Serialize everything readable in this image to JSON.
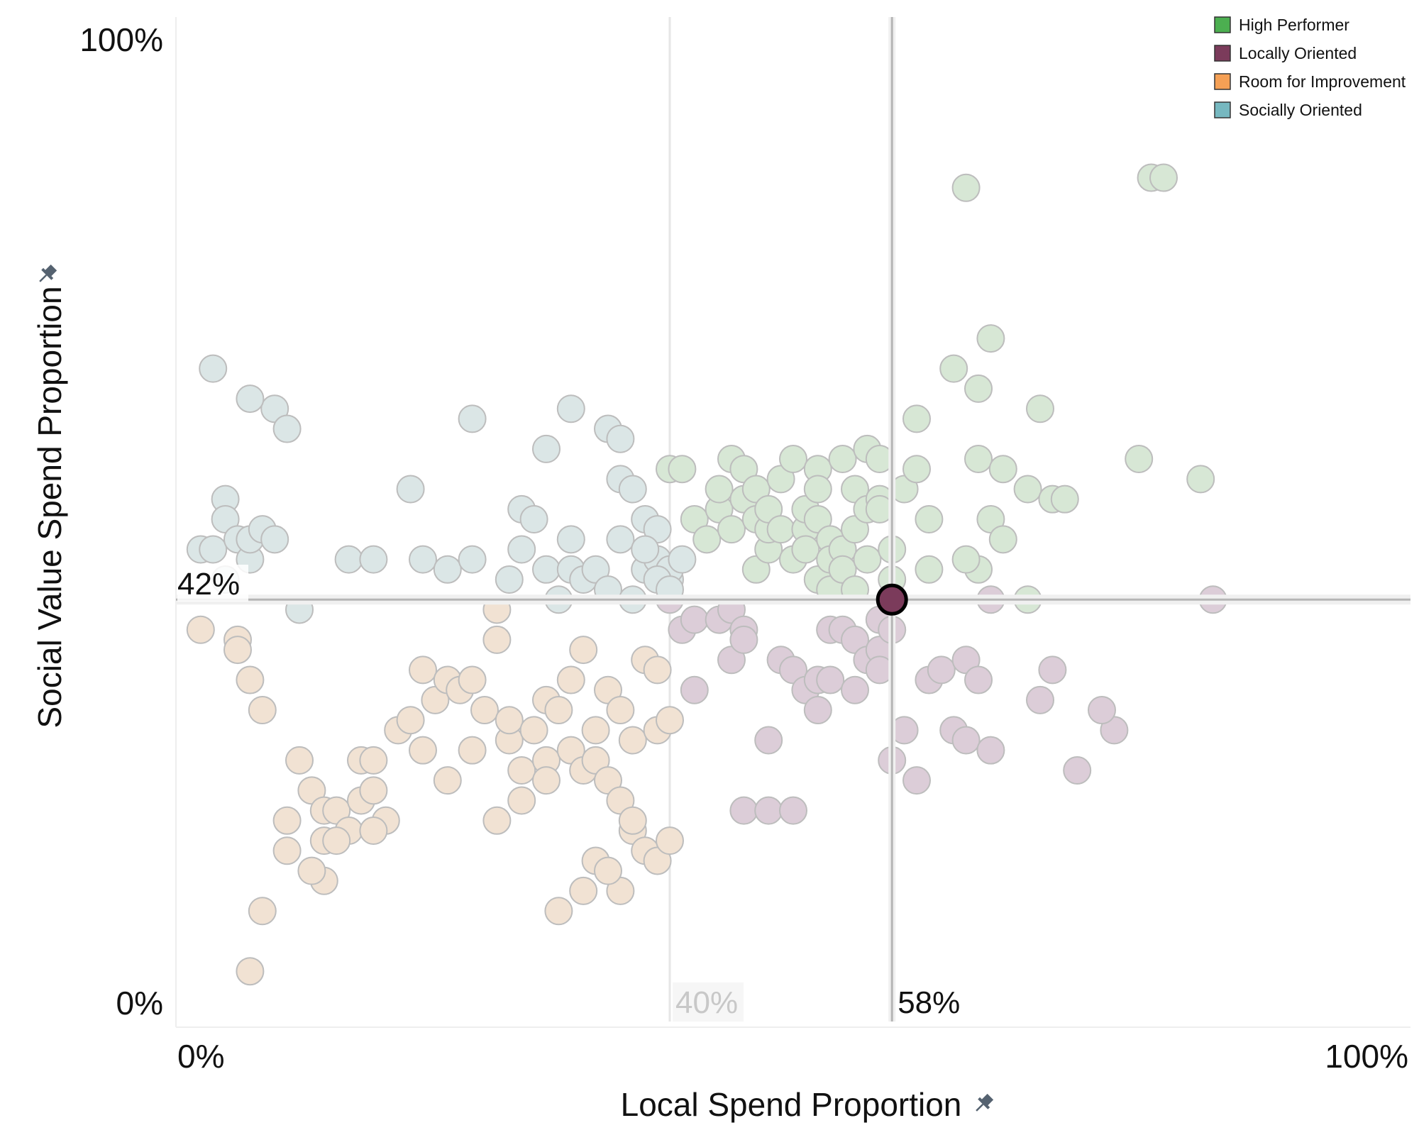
{
  "chart_data": {
    "type": "scatter",
    "xlabel": "Local Spend Proportion",
    "ylabel": "Social Value Spend Proportion",
    "xlim": [
      0,
      100
    ],
    "ylim": [
      0,
      100
    ],
    "x_ticks": [
      "0%",
      "100%"
    ],
    "y_ticks": [
      "0%",
      "100%"
    ],
    "axis_icon": "pin-icon",
    "legend_position": "top-right",
    "grid": false,
    "reference_lines": {
      "x_selected": {
        "value": 58,
        "label": "58%"
      },
      "y_selected": {
        "value": 42,
        "label": "42%"
      },
      "x_benchmark": {
        "value": 40,
        "label": "40%"
      }
    },
    "highlight_point": {
      "x": 58,
      "y": 42,
      "color": "#7b3b5b"
    },
    "series": [
      {
        "name": "High Performer",
        "color": "#4caf50",
        "fill": "#d7e7d5",
        "points": [
          [
            40,
            55
          ],
          [
            41,
            55
          ],
          [
            42,
            50
          ],
          [
            43,
            48
          ],
          [
            44,
            51
          ],
          [
            44,
            53
          ],
          [
            45,
            49
          ],
          [
            45,
            56
          ],
          [
            46,
            52
          ],
          [
            46,
            55
          ],
          [
            47,
            50
          ],
          [
            47,
            53
          ],
          [
            47,
            45
          ],
          [
            48,
            47
          ],
          [
            48,
            49
          ],
          [
            48,
            51
          ],
          [
            49,
            54
          ],
          [
            49,
            49
          ],
          [
            50,
            46
          ],
          [
            50,
            56
          ],
          [
            51,
            49
          ],
          [
            51,
            51
          ],
          [
            51,
            47
          ],
          [
            52,
            44
          ],
          [
            52,
            55
          ],
          [
            52,
            53
          ],
          [
            52,
            50
          ],
          [
            53,
            48
          ],
          [
            53,
            46
          ],
          [
            53,
            43
          ],
          [
            54,
            47
          ],
          [
            54,
            45
          ],
          [
            54,
            56
          ],
          [
            55,
            49
          ],
          [
            55,
            43
          ],
          [
            55,
            53
          ],
          [
            56,
            46
          ],
          [
            56,
            51
          ],
          [
            56,
            57
          ],
          [
            57,
            52
          ],
          [
            57,
            56
          ],
          [
            57,
            51
          ],
          [
            58,
            47
          ],
          [
            58,
            44
          ],
          [
            59,
            53
          ],
          [
            60,
            60
          ],
          [
            60,
            55
          ],
          [
            61,
            50
          ],
          [
            61,
            45
          ],
          [
            63,
            65
          ],
          [
            64,
            83
          ],
          [
            65,
            63
          ],
          [
            65,
            56
          ],
          [
            65,
            45
          ],
          [
            64,
            46
          ],
          [
            66,
            68
          ],
          [
            66,
            50
          ],
          [
            67,
            55
          ],
          [
            67,
            48
          ],
          [
            69,
            53
          ],
          [
            69,
            42
          ],
          [
            70,
            61
          ],
          [
            71,
            52
          ],
          [
            72,
            52
          ],
          [
            78,
            56
          ],
          [
            79,
            84
          ],
          [
            80,
            84
          ],
          [
            83,
            54
          ]
        ]
      },
      {
        "name": "Locally Oriented",
        "color": "#7b3b5b",
        "fill": "#dccdd8",
        "points": [
          [
            40,
            42
          ],
          [
            41,
            39
          ],
          [
            42,
            40
          ],
          [
            42,
            33
          ],
          [
            44,
            40
          ],
          [
            45,
            41
          ],
          [
            45,
            36
          ],
          [
            46,
            39
          ],
          [
            46,
            38
          ],
          [
            48,
            28
          ],
          [
            49,
            36
          ],
          [
            50,
            35
          ],
          [
            51,
            33
          ],
          [
            52,
            31
          ],
          [
            52,
            34
          ],
          [
            53,
            34
          ],
          [
            53,
            39
          ],
          [
            54,
            39
          ],
          [
            55,
            38
          ],
          [
            55,
            33
          ],
          [
            56,
            36
          ],
          [
            57,
            37
          ],
          [
            57,
            35
          ],
          [
            57,
            40
          ],
          [
            58,
            39
          ],
          [
            59,
            29
          ],
          [
            60,
            24
          ],
          [
            61,
            34
          ],
          [
            62,
            35
          ],
          [
            63,
            29
          ],
          [
            64,
            36
          ],
          [
            64,
            28
          ],
          [
            65,
            34
          ],
          [
            66,
            27
          ],
          [
            66,
            42
          ],
          [
            70,
            32
          ],
          [
            71,
            35
          ],
          [
            76,
            29
          ],
          [
            75,
            31
          ],
          [
            73,
            25
          ],
          [
            84,
            42
          ],
          [
            46,
            21
          ],
          [
            48,
            21
          ],
          [
            50,
            21
          ],
          [
            58,
            26
          ]
        ]
      },
      {
        "name": "Room for Improvement",
        "color": "#f5a055",
        "fill": "#f1e2d3",
        "points": [
          [
            2,
            39
          ],
          [
            5,
            38
          ],
          [
            5,
            37
          ],
          [
            6,
            34
          ],
          [
            7,
            31
          ],
          [
            10,
            26
          ],
          [
            11,
            23
          ],
          [
            12,
            21
          ],
          [
            12,
            18
          ],
          [
            13,
            21
          ],
          [
            14,
            19
          ],
          [
            15,
            22
          ],
          [
            15,
            26
          ],
          [
            16,
            26
          ],
          [
            17,
            20
          ],
          [
            18,
            29
          ],
          [
            19,
            30
          ],
          [
            20,
            35
          ],
          [
            21,
            32
          ],
          [
            22,
            34
          ],
          [
            23,
            33
          ],
          [
            24,
            34
          ],
          [
            25,
            31
          ],
          [
            26,
            41
          ],
          [
            26,
            38
          ],
          [
            27,
            28
          ],
          [
            27,
            30
          ],
          [
            28,
            25
          ],
          [
            29,
            29
          ],
          [
            30,
            32
          ],
          [
            31,
            31
          ],
          [
            32,
            34
          ],
          [
            33,
            37
          ],
          [
            34,
            29
          ],
          [
            35,
            33
          ],
          [
            36,
            31
          ],
          [
            37,
            28
          ],
          [
            38,
            36
          ],
          [
            39,
            35
          ],
          [
            39,
            29
          ],
          [
            40,
            30
          ],
          [
            28,
            22
          ],
          [
            30,
            26
          ],
          [
            30,
            24
          ],
          [
            32,
            27
          ],
          [
            33,
            25
          ],
          [
            34,
            26
          ],
          [
            35,
            24
          ],
          [
            36,
            22
          ],
          [
            37,
            19
          ],
          [
            37,
            20
          ],
          [
            38,
            17
          ],
          [
            39,
            16
          ],
          [
            40,
            18
          ],
          [
            36,
            13
          ],
          [
            34,
            16
          ],
          [
            33,
            13
          ],
          [
            31,
            11
          ],
          [
            35,
            15
          ],
          [
            7,
            11
          ],
          [
            6,
            5
          ],
          [
            12,
            14
          ],
          [
            13,
            18
          ],
          [
            20,
            27
          ],
          [
            22,
            24
          ],
          [
            24,
            27
          ],
          [
            26,
            20
          ],
          [
            9,
            20
          ],
          [
            9,
            17
          ],
          [
            11,
            15
          ],
          [
            16,
            19
          ],
          [
            16,
            23
          ]
        ]
      },
      {
        "name": "Socially Oriented",
        "color": "#76b8c0",
        "fill": "#dbe6e6",
        "points": [
          [
            3,
            65
          ],
          [
            4,
            52
          ],
          [
            2,
            47
          ],
          [
            3,
            47
          ],
          [
            4,
            44
          ],
          [
            4,
            50
          ],
          [
            5,
            48
          ],
          [
            6,
            46
          ],
          [
            6,
            48
          ],
          [
            7,
            49
          ],
          [
            8,
            48
          ],
          [
            8,
            61
          ],
          [
            9,
            59
          ],
          [
            6,
            62
          ],
          [
            10,
            41
          ],
          [
            14,
            46
          ],
          [
            16,
            46
          ],
          [
            19,
            53
          ],
          [
            20,
            46
          ],
          [
            22,
            45
          ],
          [
            24,
            46
          ],
          [
            24,
            60
          ],
          [
            27,
            44
          ],
          [
            28,
            51
          ],
          [
            29,
            50
          ],
          [
            30,
            45
          ],
          [
            31,
            42
          ],
          [
            32,
            48
          ],
          [
            32,
            45
          ],
          [
            33,
            44
          ],
          [
            34,
            45
          ],
          [
            35,
            43
          ],
          [
            36,
            48
          ],
          [
            37,
            42
          ],
          [
            38,
            45
          ],
          [
            38,
            50
          ],
          [
            39,
            49
          ],
          [
            39,
            46
          ],
          [
            40,
            44
          ],
          [
            40,
            45
          ],
          [
            28,
            47
          ],
          [
            30,
            57
          ],
          [
            32,
            61
          ],
          [
            35,
            59
          ],
          [
            36,
            58
          ],
          [
            36,
            54
          ],
          [
            37,
            53
          ],
          [
            38,
            47
          ],
          [
            39,
            44
          ],
          [
            40,
            43
          ],
          [
            41,
            46
          ]
        ]
      }
    ]
  }
}
